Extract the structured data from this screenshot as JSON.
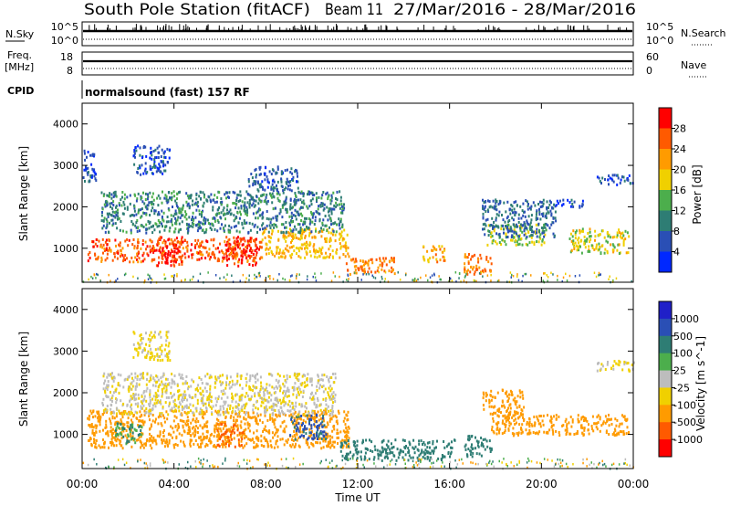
{
  "header": {
    "title": "South Pole Station (fitACF)",
    "beam": "Beam 11",
    "dates": "27/Mar/2016 - 28/Mar/2016"
  },
  "noise_panel": {
    "left_label": "N.Sky",
    "right_label": "N.Search",
    "left_ticks": [
      "10^5",
      "10^0"
    ],
    "right_ticks": [
      "10^5",
      "10^0"
    ]
  },
  "freq_panel": {
    "left_label_1": "Freq.",
    "left_label_2": "[MHz]",
    "right_label": "Nave",
    "left_ticks": [
      "18",
      "8"
    ],
    "right_ticks": [
      "60",
      "0"
    ]
  },
  "cpid_panel": {
    "label": "CPID",
    "text": "normalsound (fast) 157 RF"
  },
  "chart_data": [
    {
      "type": "heatmap",
      "parameter": "Power",
      "ylabel": "Slant Range [km]",
      "xlabel": "",
      "ylim": [
        180,
        4500
      ],
      "xlim_hours": [
        0,
        24
      ],
      "y_ticks": [
        "1000",
        "2000",
        "3000",
        "4000"
      ],
      "colorbar": {
        "label": "Power [dB]",
        "ticks": [
          "4",
          "8",
          "12",
          "16",
          "20",
          "24",
          "28"
        ],
        "colors": [
          "#0028ff",
          "#2a4fb5",
          "#2e7d74",
          "#4cae4c",
          "#f0d000",
          "#ff9b00",
          "#ff5a00",
          "#ff0000"
        ]
      },
      "regions": [
        {
          "t0": 0.2,
          "t1": 7.8,
          "r0": 700,
          "r1": 1250,
          "value": 26
        },
        {
          "t0": 3.2,
          "t1": 4.4,
          "r0": 600,
          "r1": 1300,
          "value": 29
        },
        {
          "t0": 6.2,
          "t1": 7.6,
          "r0": 600,
          "r1": 1300,
          "value": 29
        },
        {
          "t0": 7.8,
          "t1": 11.6,
          "r0": 800,
          "r1": 1500,
          "value": 20
        },
        {
          "t0": 11.4,
          "t1": 13.6,
          "r0": 400,
          "r1": 800,
          "value": 24
        },
        {
          "t0": 14.8,
          "t1": 15.8,
          "r0": 700,
          "r1": 1100,
          "value": 22
        },
        {
          "t0": 16.6,
          "t1": 17.8,
          "r0": 400,
          "r1": 900,
          "value": 24
        },
        {
          "t0": 17.6,
          "t1": 20.2,
          "r0": 1100,
          "r1": 1600,
          "value": 16
        },
        {
          "t0": 21.2,
          "t1": 23.8,
          "r0": 900,
          "r1": 1500,
          "value": 18
        },
        {
          "t0": 0.8,
          "t1": 11.4,
          "r0": 1400,
          "r1": 2400,
          "value": 10
        },
        {
          "t0": 2.2,
          "t1": 3.8,
          "r0": 2800,
          "r1": 3500,
          "value": 6
        },
        {
          "t0": 7.2,
          "t1": 9.4,
          "r0": 2400,
          "r1": 3000,
          "value": 7
        },
        {
          "t0": 17.4,
          "t1": 20.6,
          "r0": 1300,
          "r1": 2200,
          "value": 8
        },
        {
          "t0": 20.6,
          "t1": 21.8,
          "r0": 2000,
          "r1": 2200,
          "value": 5
        },
        {
          "t0": 22.4,
          "t1": 24.0,
          "r0": 2550,
          "r1": 2800,
          "value": 6
        },
        {
          "t0": 0.0,
          "t1": 0.6,
          "r0": 2600,
          "r1": 3400,
          "value": 5
        }
      ]
    },
    {
      "type": "heatmap",
      "parameter": "Velocity",
      "ylabel": "Slant Range [km]",
      "xlabel": "Time UT",
      "ylim": [
        180,
        4500
      ],
      "xlim_hours": [
        0,
        24
      ],
      "x_ticks": [
        "00:00",
        "04:00",
        "08:00",
        "12:00",
        "16:00",
        "20:00",
        "00:00"
      ],
      "y_ticks": [
        "1000",
        "2000",
        "3000",
        "4000"
      ],
      "colorbar": {
        "label": "Velocity [m s^-1]",
        "ticks": [
          "1000",
          "500",
          "100",
          "25",
          "-25",
          "-100",
          "-500",
          "-1000"
        ],
        "colors": [
          "#2020c8",
          "#2a4fb5",
          "#2e7d74",
          "#4cae4c",
          "#bdbdbd",
          "#f0d000",
          "#ff9b00",
          "#ff5a00",
          "#ff0000"
        ]
      },
      "regions": [
        {
          "t0": 0.2,
          "t1": 11.6,
          "r0": 700,
          "r1": 1600,
          "value": -300
        },
        {
          "t0": 1.4,
          "t1": 2.6,
          "r0": 800,
          "r1": 1300,
          "value": 100
        },
        {
          "t0": 5.8,
          "t1": 7.0,
          "r0": 700,
          "r1": 1300,
          "value": -600
        },
        {
          "t0": 9.0,
          "t1": 10.6,
          "r0": 900,
          "r1": 1500,
          "value": 600
        },
        {
          "t0": 11.2,
          "t1": 16.2,
          "r0": 400,
          "r1": 900,
          "value": 200
        },
        {
          "t0": 16.6,
          "t1": 17.8,
          "r0": 500,
          "r1": 1000,
          "value": 300
        },
        {
          "t0": 17.8,
          "t1": 23.8,
          "r0": 1000,
          "r1": 1500,
          "value": -300
        },
        {
          "t0": 0.8,
          "t1": 11.0,
          "r0": 1500,
          "r1": 2500,
          "value": -20
        },
        {
          "t0": 2.2,
          "t1": 3.8,
          "r0": 2800,
          "r1": 3500,
          "value": -40
        },
        {
          "t0": 17.4,
          "t1": 19.2,
          "r0": 1500,
          "r1": 2100,
          "value": -300
        },
        {
          "t0": 22.4,
          "t1": 24.0,
          "r0": 2550,
          "r1": 2800,
          "value": -30
        }
      ]
    }
  ]
}
